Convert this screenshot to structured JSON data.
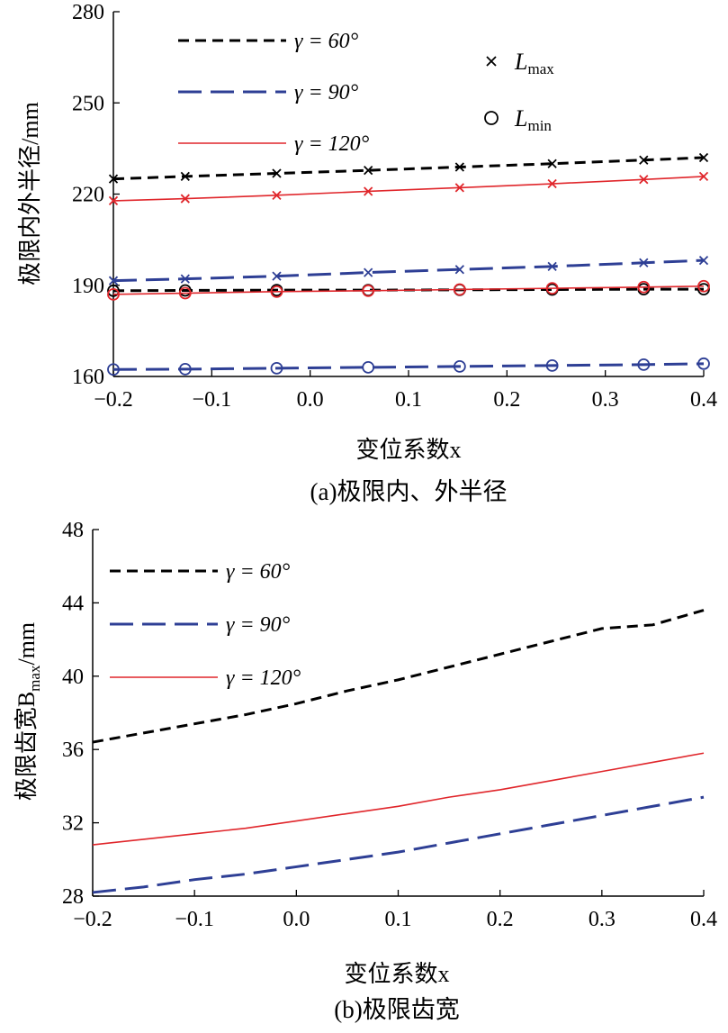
{
  "chart_data": [
    {
      "type": "line",
      "caption": "(a)极限内、外半径",
      "xlabel": "变位系数x",
      "ylabel": "极限内外半径/mm",
      "xlim": [
        -0.2,
        0.4
      ],
      "ylim": [
        160,
        280
      ],
      "xticks": [
        "−0.2",
        "−0.1",
        "0.0",
        "0.1",
        "0.2",
        "0.3",
        "0.4"
      ],
      "yticks": [
        "160",
        "190",
        "220",
        "250",
        "280"
      ],
      "grid": false,
      "legend_position": "top-left",
      "legend": [
        "γ = 60°",
        "γ = 90°",
        "γ = 120°"
      ],
      "marker_legend": [
        {
          "marker": "x",
          "label": "L",
          "sub": "max"
        },
        {
          "marker": "o",
          "label": "L",
          "sub": "min"
        }
      ],
      "x": [
        -0.2,
        -0.127,
        -0.034,
        0.059,
        0.152,
        0.246,
        0.339,
        0.4
      ],
      "series": [
        {
          "name": "γ = 60°",
          "kind": "Lmax",
          "color": "#000000",
          "dash": "12 7",
          "marker": "x",
          "values": [
            225,
            225.8,
            226.8,
            227.8,
            228.9,
            230.0,
            231.2,
            232.0
          ]
        },
        {
          "name": "γ = 60°",
          "kind": "Lmin",
          "color": "#000000",
          "dash": "12 7",
          "marker": "o",
          "values": [
            188.2,
            188.3,
            188.4,
            188.4,
            188.5,
            188.6,
            188.7,
            188.7
          ]
        },
        {
          "name": "γ = 90°",
          "kind": "Lmax",
          "color": "#2e3f95",
          "dash": "26 10",
          "marker": "x",
          "values": [
            191.5,
            192.1,
            193.0,
            194.2,
            195.2,
            196.2,
            197.4,
            198.2
          ]
        },
        {
          "name": "γ = 90°",
          "kind": "Lmin",
          "color": "#2e3f95",
          "dash": "26 10",
          "marker": "o",
          "values": [
            162.3,
            162.4,
            162.7,
            163.0,
            163.3,
            163.6,
            163.9,
            164.2
          ]
        },
        {
          "name": "γ = 120°",
          "kind": "Lmax",
          "color": "#e0262b",
          "dash": "",
          "marker": "x",
          "values": [
            217.8,
            218.5,
            219.6,
            220.9,
            222.1,
            223.4,
            224.8,
            225.8
          ]
        },
        {
          "name": "γ = 120°",
          "kind": "Lmin",
          "color": "#e0262b",
          "dash": "",
          "marker": "o",
          "values": [
            187.0,
            187.4,
            187.9,
            188.2,
            188.6,
            189.0,
            189.4,
            189.7
          ]
        }
      ]
    },
    {
      "type": "line",
      "caption": "(b)极限齿宽",
      "xlabel": "变位系数x",
      "ylabel": "极限齿宽B",
      "ylabel_sub": "max",
      "ylabel_tail": "/mm",
      "xlim": [
        -0.2,
        0.4
      ],
      "ylim": [
        28,
        48
      ],
      "xticks": [
        "−0.2",
        "−0.1",
        "0.0",
        "0.1",
        "0.2",
        "0.3",
        "0.4"
      ],
      "yticks": [
        "28",
        "32",
        "36",
        "40",
        "44",
        "48"
      ],
      "grid": false,
      "legend_position": "top-left",
      "legend": [
        "γ = 60°",
        "γ = 90°",
        "γ = 120°"
      ],
      "x": [
        -0.2,
        -0.15,
        -0.1,
        -0.05,
        0.0,
        0.05,
        0.1,
        0.15,
        0.2,
        0.25,
        0.3,
        0.35,
        0.4
      ],
      "series": [
        {
          "name": "γ = 60°",
          "color": "#000000",
          "dash": "12 7",
          "values": [
            36.4,
            36.9,
            37.4,
            37.9,
            38.5,
            39.2,
            39.8,
            40.5,
            41.2,
            41.9,
            42.6,
            42.8,
            43.6
          ]
        },
        {
          "name": "γ = 90°",
          "color": "#2e3f95",
          "dash": "26 10",
          "values": [
            28.2,
            28.5,
            28.9,
            29.2,
            29.6,
            30.0,
            30.4,
            30.9,
            31.4,
            31.9,
            32.4,
            32.9,
            33.4
          ]
        },
        {
          "name": "γ = 120°",
          "color": "#e0262b",
          "dash": "",
          "values": [
            30.8,
            31.1,
            31.4,
            31.7,
            32.1,
            32.5,
            32.9,
            33.4,
            33.8,
            34.3,
            34.8,
            35.3,
            35.8
          ]
        }
      ]
    }
  ]
}
